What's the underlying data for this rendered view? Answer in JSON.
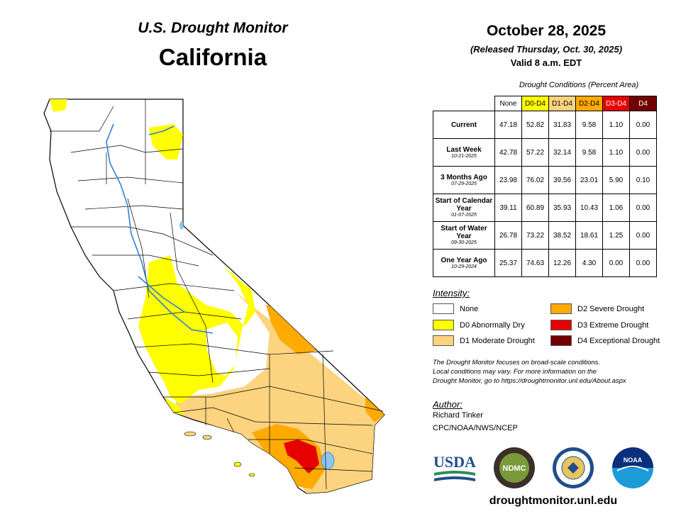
{
  "header": {
    "title": "U.S. Drought Monitor",
    "state": "California",
    "date": "October 28, 2025",
    "released": "(Released Thursday, Oct. 30, 2025)",
    "valid": "Valid 8 a.m. EDT"
  },
  "table": {
    "caption": "Drought Conditions (Percent Area)",
    "columns": [
      {
        "label": "None",
        "color": "#ffffff",
        "text_color": "#000000"
      },
      {
        "label": "D0-D4",
        "color": "#ffff00",
        "text_color": "#000000"
      },
      {
        "label": "D1-D4",
        "color": "#fcd37f",
        "text_color": "#000000"
      },
      {
        "label": "D2-D4",
        "color": "#ffaa00",
        "text_color": "#000000"
      },
      {
        "label": "D3-D4",
        "color": "#e60000",
        "text_color": "#ffffff"
      },
      {
        "label": "D4",
        "color": "#730000",
        "text_color": "#ffffff"
      }
    ],
    "rows": [
      {
        "label": "Current",
        "sub": "",
        "values": [
          "47.18",
          "52.82",
          "31.83",
          "9.58",
          "1.10",
          "0.00"
        ]
      },
      {
        "label": "Last Week",
        "sub": "10-21-2025",
        "values": [
          "42.78",
          "57.22",
          "32.14",
          "9.58",
          "1.10",
          "0.00"
        ]
      },
      {
        "label": "3 Months Ago",
        "sub": "07-29-2025",
        "values": [
          "23.98",
          "76.02",
          "39.56",
          "23.01",
          "5.90",
          "0.10"
        ]
      },
      {
        "label": "Start of Calendar Year",
        "sub": "01-07-2025",
        "values": [
          "39.11",
          "60.89",
          "35.93",
          "10.43",
          "1.06",
          "0.00"
        ]
      },
      {
        "label": "Start of Water Year",
        "sub": "09-30-2025",
        "values": [
          "26.78",
          "73.22",
          "38.52",
          "18.61",
          "1.25",
          "0.00"
        ]
      },
      {
        "label": "One Year Ago",
        "sub": "10-29-2024",
        "values": [
          "25.37",
          "74.63",
          "12.26",
          "4.30",
          "0.00",
          "0.00"
        ]
      }
    ]
  },
  "legend": {
    "title": "Intensity:",
    "items": [
      {
        "label": "None",
        "color": "#ffffff"
      },
      {
        "label": "D0 Abnormally Dry",
        "color": "#ffff00"
      },
      {
        "label": "D1 Moderate Drought",
        "color": "#fcd37f"
      },
      {
        "label": "D2 Severe Drought",
        "color": "#ffaa00"
      },
      {
        "label": "D3 Extreme Drought",
        "color": "#e60000"
      },
      {
        "label": "D4 Exceptional Drought",
        "color": "#730000"
      }
    ]
  },
  "note": {
    "line1": "The Drought Monitor focuses on broad-scale conditions.",
    "line2": "Local conditions may vary. For more information on the",
    "line3": "Drought Monitor, go to https://droughtmonitor.unl.edu/About.aspx"
  },
  "author": {
    "title": "Author:",
    "name": "Richard Tinker",
    "org": "CPC/NOAA/NWS/NCEP"
  },
  "logos": {
    "usda": "USDA",
    "ndmc": "NDMC",
    "noaa": "NOAA"
  },
  "footer": {
    "url": "droughtmonitor.unl.edu"
  }
}
